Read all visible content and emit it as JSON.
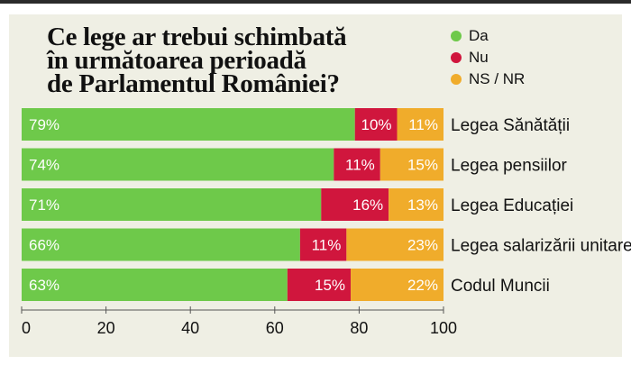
{
  "chart_data": {
    "type": "bar",
    "orientation": "horizontal",
    "stacked": true,
    "title": "Ce lege ar trebui schimbată\nîn următoarea perioadă\nde Parlamentul României?",
    "categories": [
      "Legea Sănătății",
      "Legea pensiilor",
      "Legea Educației",
      "Legea salarizării unitare",
      "Codul Muncii"
    ],
    "series": [
      {
        "name": "Da",
        "color": "#6ec94a",
        "values": [
          79,
          74,
          71,
          66,
          63
        ],
        "labels": [
          "79%",
          "74%",
          "71%",
          "66%",
          "63%"
        ]
      },
      {
        "name": "Nu",
        "color": "#d0163d",
        "values": [
          10,
          11,
          16,
          11,
          15
        ],
        "labels": [
          "10%",
          "11%",
          "16%",
          "11%",
          "15%"
        ]
      },
      {
        "name": "NS / NR",
        "color": "#f0ac2b",
        "values": [
          11,
          15,
          13,
          23,
          22
        ],
        "labels": [
          "11%",
          "15%",
          "13%",
          "23%",
          "22%"
        ]
      }
    ],
    "xlim": [
      0,
      100
    ],
    "xticks": [
      "0",
      "20",
      "40",
      "60",
      "80",
      "100"
    ],
    "legend_position": "top-right",
    "grid": false
  }
}
